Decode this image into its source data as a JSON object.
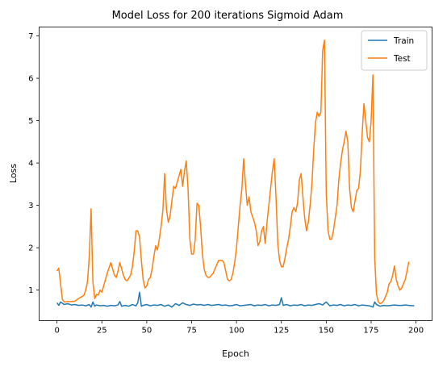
{
  "chart_data": {
    "type": "line",
    "title": "Model Loss for 200 iterations Sigmoid Adam",
    "xlabel": "Epoch",
    "ylabel": "Loss",
    "xlim": [
      -9.95,
      208.95
    ],
    "ylim": [
      0.28,
      7.21
    ],
    "xticks": [
      0,
      25,
      50,
      75,
      100,
      125,
      150,
      175,
      200
    ],
    "yticks": [
      1,
      2,
      3,
      4,
      5,
      6,
      7
    ],
    "grid": false,
    "legend_position": "top-right",
    "series": [
      {
        "name": "Train",
        "color": "#1f77b4",
        "points": [
          [
            0,
            0.7
          ],
          [
            1,
            0.64
          ],
          [
            2,
            0.72
          ],
          [
            4,
            0.66
          ],
          [
            6,
            0.68
          ],
          [
            8,
            0.65
          ],
          [
            10,
            0.66
          ],
          [
            12,
            0.64
          ],
          [
            14,
            0.65
          ],
          [
            16,
            0.63
          ],
          [
            18,
            0.66
          ],
          [
            19,
            0.6
          ],
          [
            20,
            0.72
          ],
          [
            21,
            0.62
          ],
          [
            22,
            0.65
          ],
          [
            24,
            0.63
          ],
          [
            26,
            0.64
          ],
          [
            28,
            0.62
          ],
          [
            30,
            0.64
          ],
          [
            32,
            0.63
          ],
          [
            34,
            0.65
          ],
          [
            35,
            0.73
          ],
          [
            36,
            0.62
          ],
          [
            38,
            0.64
          ],
          [
            40,
            0.62
          ],
          [
            42,
            0.66
          ],
          [
            44,
            0.63
          ],
          [
            45,
            0.7
          ],
          [
            46,
            0.95
          ],
          [
            47,
            0.62
          ],
          [
            48,
            0.64
          ],
          [
            50,
            0.66
          ],
          [
            52,
            0.63
          ],
          [
            54,
            0.65
          ],
          [
            56,
            0.64
          ],
          [
            58,
            0.66
          ],
          [
            60,
            0.62
          ],
          [
            62,
            0.65
          ],
          [
            64,
            0.6
          ],
          [
            66,
            0.68
          ],
          [
            68,
            0.64
          ],
          [
            70,
            0.7
          ],
          [
            72,
            0.66
          ],
          [
            74,
            0.64
          ],
          [
            76,
            0.67
          ],
          [
            78,
            0.65
          ],
          [
            80,
            0.66
          ],
          [
            82,
            0.64
          ],
          [
            84,
            0.66
          ],
          [
            86,
            0.64
          ],
          [
            88,
            0.65
          ],
          [
            90,
            0.66
          ],
          [
            92,
            0.64
          ],
          [
            94,
            0.65
          ],
          [
            96,
            0.63
          ],
          [
            98,
            0.64
          ],
          [
            100,
            0.66
          ],
          [
            102,
            0.63
          ],
          [
            104,
            0.64
          ],
          [
            106,
            0.65
          ],
          [
            108,
            0.66
          ],
          [
            110,
            0.63
          ],
          [
            112,
            0.65
          ],
          [
            114,
            0.64
          ],
          [
            116,
            0.66
          ],
          [
            118,
            0.63
          ],
          [
            120,
            0.65
          ],
          [
            122,
            0.64
          ],
          [
            124,
            0.66
          ],
          [
            125,
            0.82
          ],
          [
            126,
            0.64
          ],
          [
            128,
            0.66
          ],
          [
            130,
            0.63
          ],
          [
            132,
            0.65
          ],
          [
            134,
            0.64
          ],
          [
            136,
            0.66
          ],
          [
            138,
            0.63
          ],
          [
            140,
            0.65
          ],
          [
            142,
            0.64
          ],
          [
            144,
            0.66
          ],
          [
            146,
            0.68
          ],
          [
            148,
            0.65
          ],
          [
            150,
            0.72
          ],
          [
            152,
            0.63
          ],
          [
            154,
            0.65
          ],
          [
            156,
            0.64
          ],
          [
            158,
            0.66
          ],
          [
            160,
            0.63
          ],
          [
            162,
            0.65
          ],
          [
            164,
            0.64
          ],
          [
            166,
            0.66
          ],
          [
            168,
            0.63
          ],
          [
            170,
            0.65
          ],
          [
            172,
            0.64
          ],
          [
            174,
            0.63
          ],
          [
            176,
            0.6
          ],
          [
            177,
            0.72
          ],
          [
            178,
            0.66
          ],
          [
            180,
            0.62
          ],
          [
            182,
            0.64
          ],
          [
            184,
            0.63
          ],
          [
            186,
            0.64
          ],
          [
            188,
            0.65
          ],
          [
            190,
            0.64
          ],
          [
            192,
            0.64
          ],
          [
            194,
            0.65
          ],
          [
            196,
            0.64
          ],
          [
            199,
            0.63
          ]
        ]
      },
      {
        "name": "Test",
        "color": "#ff7f0e",
        "points": [
          [
            0,
            1.45
          ],
          [
            1,
            1.52
          ],
          [
            2,
            1.15
          ],
          [
            3,
            0.78
          ],
          [
            4,
            0.72
          ],
          [
            6,
            0.73
          ],
          [
            8,
            0.73
          ],
          [
            10,
            0.74
          ],
          [
            12,
            0.8
          ],
          [
            14,
            0.85
          ],
          [
            15,
            0.88
          ],
          [
            16,
            1.0
          ],
          [
            17,
            1.2
          ],
          [
            18,
            1.8
          ],
          [
            19,
            2.92
          ],
          [
            20,
            1.2
          ],
          [
            21,
            0.8
          ],
          [
            22,
            0.9
          ],
          [
            23,
            0.88
          ],
          [
            24,
            1.0
          ],
          [
            25,
            0.95
          ],
          [
            26,
            1.1
          ],
          [
            27,
            1.25
          ],
          [
            28,
            1.4
          ],
          [
            30,
            1.65
          ],
          [
            31,
            1.5
          ],
          [
            32,
            1.35
          ],
          [
            33,
            1.3
          ],
          [
            34,
            1.45
          ],
          [
            35,
            1.65
          ],
          [
            36,
            1.5
          ],
          [
            37,
            1.35
          ],
          [
            38,
            1.25
          ],
          [
            39,
            1.22
          ],
          [
            40,
            1.28
          ],
          [
            41,
            1.35
          ],
          [
            42,
            1.55
          ],
          [
            43,
            1.9
          ],
          [
            44,
            2.4
          ],
          [
            45,
            2.4
          ],
          [
            46,
            2.25
          ],
          [
            47,
            1.7
          ],
          [
            48,
            1.25
          ],
          [
            49,
            1.05
          ],
          [
            50,
            1.1
          ],
          [
            51,
            1.25
          ],
          [
            52,
            1.3
          ],
          [
            53,
            1.5
          ],
          [
            54,
            1.8
          ],
          [
            55,
            2.05
          ],
          [
            56,
            1.95
          ],
          [
            57,
            2.2
          ],
          [
            58,
            2.5
          ],
          [
            59,
            2.9
          ],
          [
            60,
            3.75
          ],
          [
            61,
            2.9
          ],
          [
            62,
            2.6
          ],
          [
            63,
            2.75
          ],
          [
            64,
            3.1
          ],
          [
            65,
            3.45
          ],
          [
            66,
            3.4
          ],
          [
            67,
            3.55
          ],
          [
            68,
            3.7
          ],
          [
            69,
            3.85
          ],
          [
            70,
            3.45
          ],
          [
            71,
            3.8
          ],
          [
            72,
            4.05
          ],
          [
            73,
            3.4
          ],
          [
            74,
            2.2
          ],
          [
            75,
            1.85
          ],
          [
            76,
            1.85
          ],
          [
            77,
            2.2
          ],
          [
            78,
            3.05
          ],
          [
            79,
            3.0
          ],
          [
            80,
            2.5
          ],
          [
            81,
            1.85
          ],
          [
            82,
            1.5
          ],
          [
            83,
            1.35
          ],
          [
            84,
            1.3
          ],
          [
            85,
            1.3
          ],
          [
            86,
            1.35
          ],
          [
            87,
            1.4
          ],
          [
            88,
            1.5
          ],
          [
            89,
            1.6
          ],
          [
            90,
            1.7
          ],
          [
            92,
            1.7
          ],
          [
            93,
            1.65
          ],
          [
            94,
            1.45
          ],
          [
            95,
            1.25
          ],
          [
            96,
            1.22
          ],
          [
            97,
            1.25
          ],
          [
            98,
            1.4
          ],
          [
            99,
            1.65
          ],
          [
            100,
            2.0
          ],
          [
            101,
            2.5
          ],
          [
            102,
            3.0
          ],
          [
            103,
            3.4
          ],
          [
            104,
            4.1
          ],
          [
            105,
            3.5
          ],
          [
            106,
            3.0
          ],
          [
            107,
            3.2
          ],
          [
            108,
            2.85
          ],
          [
            110,
            2.6
          ],
          [
            111,
            2.4
          ],
          [
            112,
            2.05
          ],
          [
            113,
            2.15
          ],
          [
            114,
            2.4
          ],
          [
            115,
            2.5
          ],
          [
            116,
            2.1
          ],
          [
            117,
            2.6
          ],
          [
            118,
            3.0
          ],
          [
            119,
            3.4
          ],
          [
            120,
            3.8
          ],
          [
            121,
            4.1
          ],
          [
            122,
            3.2
          ],
          [
            123,
            2.1
          ],
          [
            124,
            1.7
          ],
          [
            125,
            1.55
          ],
          [
            126,
            1.55
          ],
          [
            127,
            1.75
          ],
          [
            128,
            2.0
          ],
          [
            129,
            2.2
          ],
          [
            130,
            2.5
          ],
          [
            131,
            2.85
          ],
          [
            132,
            2.95
          ],
          [
            133,
            2.85
          ],
          [
            134,
            3.05
          ],
          [
            135,
            3.6
          ],
          [
            136,
            3.75
          ],
          [
            137,
            3.2
          ],
          [
            138,
            2.7
          ],
          [
            139,
            2.4
          ],
          [
            140,
            2.6
          ],
          [
            141,
            3.0
          ],
          [
            142,
            3.5
          ],
          [
            143,
            4.3
          ],
          [
            144,
            4.95
          ],
          [
            145,
            5.2
          ],
          [
            146,
            5.1
          ],
          [
            147,
            5.2
          ],
          [
            148,
            6.65
          ],
          [
            149,
            6.9
          ],
          [
            150,
            3.3
          ],
          [
            151,
            2.4
          ],
          [
            152,
            2.2
          ],
          [
            153,
            2.2
          ],
          [
            154,
            2.4
          ],
          [
            155,
            2.7
          ],
          [
            156,
            3.0
          ],
          [
            157,
            3.6
          ],
          [
            158,
            4.0
          ],
          [
            159,
            4.3
          ],
          [
            160,
            4.5
          ],
          [
            161,
            4.75
          ],
          [
            162,
            4.5
          ],
          [
            163,
            3.4
          ],
          [
            164,
            2.95
          ],
          [
            165,
            2.85
          ],
          [
            166,
            3.1
          ],
          [
            167,
            3.35
          ],
          [
            168,
            3.4
          ],
          [
            169,
            3.8
          ],
          [
            170,
            4.7
          ],
          [
            171,
            5.4
          ],
          [
            172,
            5.0
          ],
          [
            173,
            4.6
          ],
          [
            174,
            4.5
          ],
          [
            175,
            5.0
          ],
          [
            176,
            6.08
          ],
          [
            177,
            1.75
          ],
          [
            178,
            0.9
          ],
          [
            179,
            0.72
          ],
          [
            180,
            0.68
          ],
          [
            181,
            0.7
          ],
          [
            182,
            0.75
          ],
          [
            183,
            0.85
          ],
          [
            184,
            0.95
          ],
          [
            185,
            1.15
          ],
          [
            186,
            1.2
          ],
          [
            187,
            1.35
          ],
          [
            188,
            1.57
          ],
          [
            189,
            1.25
          ],
          [
            190,
            1.1
          ],
          [
            191,
            1.0
          ],
          [
            192,
            1.05
          ],
          [
            193,
            1.15
          ],
          [
            194,
            1.25
          ],
          [
            195,
            1.45
          ],
          [
            196,
            1.67
          ]
        ]
      }
    ]
  }
}
